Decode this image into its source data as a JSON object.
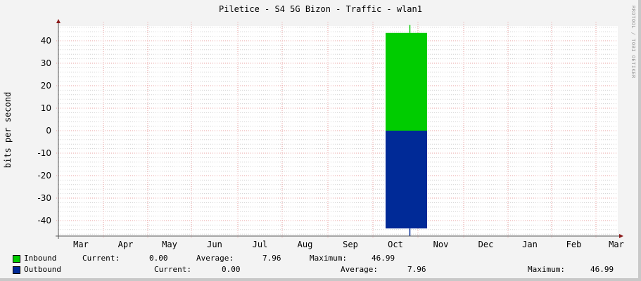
{
  "title": "Piletice - S4 5G Bizon - Traffic - wlan1",
  "watermark": "RRDTOOL / TOBI OETIKER",
  "colors": {
    "background": "#f3f3f3",
    "plot_bg": "#ffffff",
    "major_grid": "#e8a0a0",
    "minor_grid": "#d0d0d0",
    "axis": "#8b1a1a",
    "inbound": "#00cc00",
    "outbound": "#002a97"
  },
  "chart_data": {
    "type": "area",
    "title": "Piletice - S4 5G Bizon - Traffic - wlan1",
    "xlabel": "",
    "ylabel": "bits per second",
    "ylim": [
      -46.99,
      46.99
    ],
    "yticks": [
      40,
      30,
      20,
      10,
      0,
      -10,
      -20,
      -30,
      -40
    ],
    "ytick_labels": [
      "40",
      "30",
      "20",
      "10",
      "0",
      "-10",
      "-20",
      "-30",
      "-40"
    ],
    "categories": [
      "Mar",
      "Apr",
      "May",
      "Jun",
      "Jul",
      "Aug",
      "Sep",
      "Oct",
      "Nov",
      "Dec",
      "Jan",
      "Feb",
      "Mar"
    ],
    "grid": true,
    "legend_position": "bottom",
    "series": [
      {
        "name": "Inbound",
        "color": "#00cc00",
        "direction": "positive",
        "values": [
          0,
          0,
          0,
          0,
          0,
          0,
          0,
          43.5,
          0,
          0,
          0,
          0,
          0
        ],
        "peak": 46.99,
        "current": 0.0,
        "average": 7.96,
        "maximum": 46.99
      },
      {
        "name": "Outbound",
        "color": "#002a97",
        "direction": "negative (mirrored)",
        "values": [
          0,
          0,
          0,
          0,
          0,
          0,
          0,
          43.5,
          0,
          0,
          0,
          0,
          0
        ],
        "peak": 46.99,
        "current": 0.0,
        "average": 7.96,
        "maximum": 46.99
      }
    ]
  },
  "y_axis_label": "bits per second",
  "x_labels": [
    "Mar",
    "Apr",
    "May",
    "Jun",
    "Jul",
    "Aug",
    "Sep",
    "Oct",
    "Nov",
    "Dec",
    "Jan",
    "Feb",
    "Mar"
  ],
  "y_labels": [
    "40",
    "30",
    "20",
    "10",
    "0",
    "-10",
    "-20",
    "-30",
    "-40"
  ],
  "legend": {
    "inbound": {
      "name": "Inbound",
      "current_label": "Current:",
      "current": "0.00",
      "average_label": "Average:",
      "average": "7.96",
      "maximum_label": "Maximum:",
      "maximum": "46.99"
    },
    "outbound": {
      "name": "Outbound",
      "current_label": "Current:",
      "current": "0.00",
      "average_label": "Average:",
      "average": "7.96",
      "maximum_label": "Maximum:",
      "maximum": "46.99"
    }
  }
}
